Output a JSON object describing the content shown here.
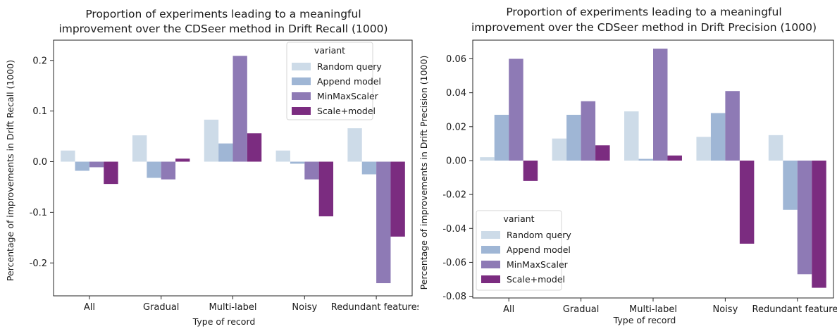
{
  "charts": [
    {
      "title_lines": [
        "Proportion of experiments leading to a meaningful",
        "improvement over the CDSeer method in Drift Recall (1000)"
      ],
      "xlabel": "Type of record",
      "ylabel": "Percentage of improvements in Drift Recall (1000)",
      "y_ticks": [
        "0.2",
        "0.1",
        "0.0",
        "-0.1",
        "-0.2"
      ],
      "legend_title": "variant",
      "legend_position": "top-right"
    },
    {
      "title_lines": [
        "Proportion of experiments leading to a meaningful",
        "improvement over the CDSeer method in Drift Precision (1000)"
      ],
      "xlabel": "Type of record",
      "ylabel": "Percentage of improvements in Drift Precision (1000)",
      "y_ticks": [
        "0.06",
        "0.04",
        "0.02",
        "0.00",
        "-0.02",
        "-0.04",
        "-0.06",
        "-0.08"
      ],
      "legend_title": "variant",
      "legend_position": "bottom-left"
    }
  ],
  "chart_data": [
    {
      "type": "bar",
      "title": "Proportion of experiments leading to a meaningful improvement over the CDSeer method in Drift Recall (1000)",
      "xlabel": "Type of record",
      "ylabel": "Percentage of improvements in Drift Recall (1000)",
      "categories": [
        "All",
        "Gradual",
        "Multi-label",
        "Noisy",
        "Redundant features"
      ],
      "ylim": [
        -0.265,
        0.24
      ],
      "yticks": [
        -0.2,
        -0.1,
        0.0,
        0.1,
        0.2
      ],
      "grid": false,
      "legend": "top-right",
      "series": [
        {
          "name": "Random query",
          "color": "#cddbe8",
          "values": [
            0.022,
            0.052,
            0.083,
            0.022,
            0.066
          ]
        },
        {
          "name": "Append model",
          "color": "#9fb6d5",
          "values": [
            -0.018,
            -0.032,
            0.036,
            -0.004,
            -0.025
          ]
        },
        {
          "name": "MinMaxScaler",
          "color": "#8e7ab5",
          "values": [
            -0.011,
            -0.035,
            0.209,
            -0.035,
            -0.24
          ]
        },
        {
          "name": "Scale+model",
          "color": "#7b2c80",
          "values": [
            -0.044,
            0.006,
            0.056,
            -0.108,
            -0.148
          ]
        }
      ]
    },
    {
      "type": "bar",
      "title": "Proportion of experiments leading to a meaningful improvement over the CDSeer method in Drift Precision (1000)",
      "xlabel": "Type of record",
      "ylabel": "Percentage of improvements in Drift Precision (1000)",
      "categories": [
        "All",
        "Gradual",
        "Multi-label",
        "Noisy",
        "Redundant features"
      ],
      "ylim": [
        -0.081,
        0.071
      ],
      "yticks": [
        -0.08,
        -0.06,
        -0.04,
        -0.02,
        0.0,
        0.02,
        0.04,
        0.06
      ],
      "grid": false,
      "legend": "bottom-left",
      "series": [
        {
          "name": "Random query",
          "color": "#cddbe8",
          "values": [
            0.002,
            0.013,
            0.029,
            0.014,
            0.015
          ]
        },
        {
          "name": "Append model",
          "color": "#9fb6d5",
          "values": [
            0.027,
            0.027,
            0.001,
            0.028,
            -0.029
          ]
        },
        {
          "name": "MinMaxScaler",
          "color": "#8e7ab5",
          "values": [
            0.06,
            0.035,
            0.066,
            0.041,
            -0.067
          ]
        },
        {
          "name": "Scale+model",
          "color": "#7b2c80",
          "values": [
            -0.012,
            0.009,
            0.003,
            -0.049,
            -0.075
          ]
        }
      ]
    }
  ]
}
